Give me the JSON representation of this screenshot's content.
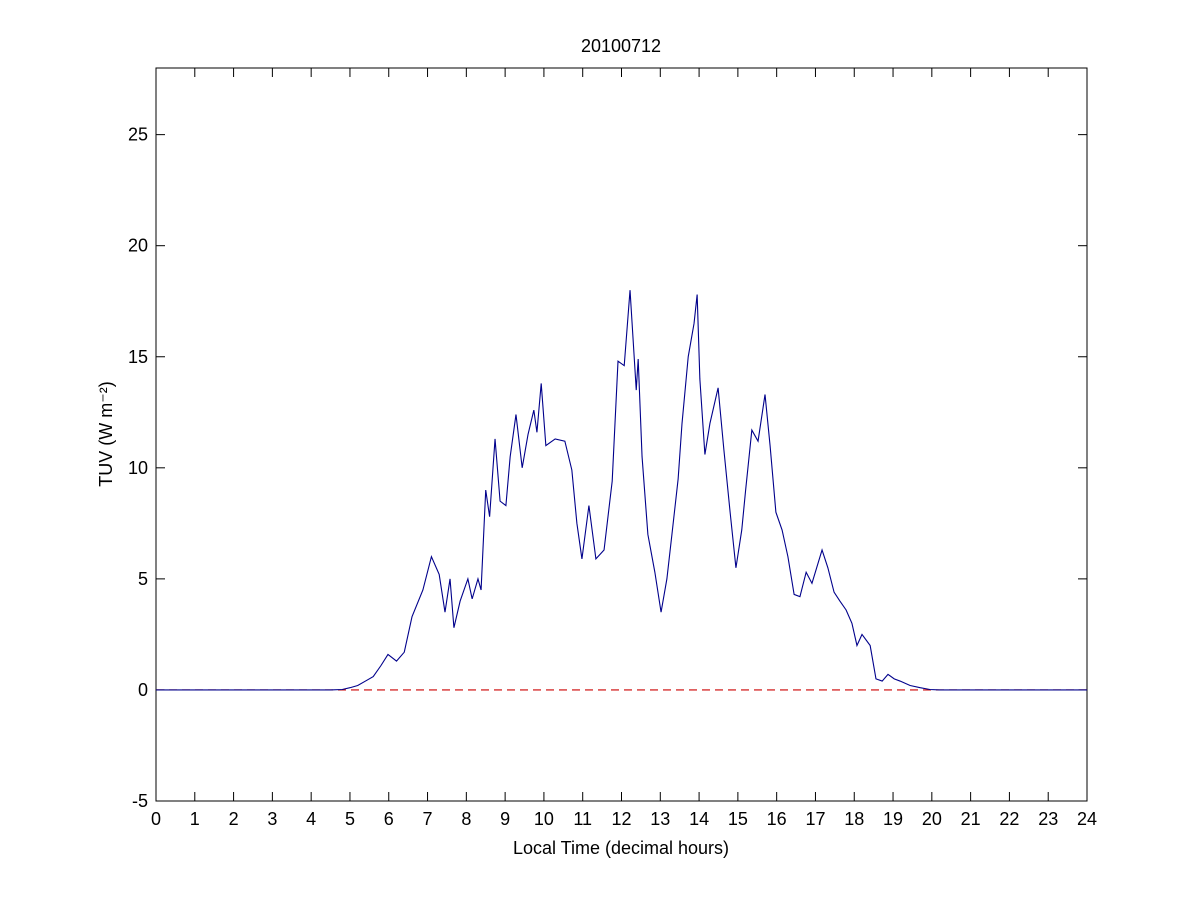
{
  "chart_data": {
    "type": "line",
    "title": "20100712",
    "xlabel": "Local Time (decimal hours)",
    "ylabel": "TUV (W m⁻²)",
    "x": [
      0,
      4.5,
      4.8,
      5.0,
      5.2,
      5.4,
      5.6,
      5.8,
      5.98,
      6.2,
      6.4,
      6.6,
      6.88,
      7.1,
      7.3,
      7.45,
      7.58,
      7.68,
      7.84,
      8.04,
      8.15,
      8.3,
      8.38,
      8.5,
      8.6,
      8.74,
      8.87,
      9.02,
      9.13,
      9.28,
      9.44,
      9.59,
      9.74,
      9.82,
      9.93,
      10.05,
      10.29,
      10.54,
      10.72,
      10.85,
      10.98,
      11.16,
      11.34,
      11.55,
      11.76,
      11.91,
      12.07,
      12.22,
      12.38,
      12.43,
      12.53,
      12.68,
      12.86,
      13.02,
      13.17,
      13.3,
      13.46,
      13.56,
      13.72,
      13.87,
      13.95,
      14.02,
      14.15,
      14.28,
      14.49,
      14.64,
      14.8,
      14.95,
      15.1,
      15.2,
      15.36,
      15.52,
      15.7,
      15.83,
      15.98,
      16.14,
      16.29,
      16.45,
      16.6,
      16.76,
      16.91,
      17.17,
      17.32,
      17.48,
      17.63,
      17.79,
      17.94,
      18.07,
      18.2,
      18.41,
      18.56,
      18.72,
      18.87,
      19.03,
      19.18,
      19.44,
      19.7,
      19.95,
      20.2,
      24
    ],
    "values": [
      0,
      0,
      0.02,
      0.1,
      0.2,
      0.4,
      0.6,
      1.1,
      1.6,
      1.3,
      1.7,
      3.3,
      4.5,
      6.0,
      5.2,
      3.5,
      5.0,
      2.8,
      4.0,
      5.0,
      4.1,
      5.0,
      4.5,
      9.0,
      7.8,
      11.3,
      8.5,
      8.3,
      10.5,
      12.4,
      10.0,
      11.5,
      12.6,
      11.6,
      13.8,
      11.0,
      11.3,
      11.2,
      9.9,
      7.5,
      5.9,
      8.3,
      5.9,
      6.3,
      9.4,
      14.8,
      14.6,
      18.0,
      13.5,
      14.9,
      10.5,
      7.0,
      5.3,
      3.5,
      5.0,
      7.0,
      9.5,
      12.0,
      15.0,
      16.5,
      17.8,
      14.0,
      10.6,
      12.0,
      13.6,
      10.8,
      8.0,
      5.5,
      7.2,
      9.0,
      11.7,
      11.2,
      13.3,
      11.0,
      8.0,
      7.2,
      6.0,
      4.3,
      4.2,
      5.3,
      4.8,
      6.3,
      5.5,
      4.4,
      4.0,
      3.6,
      3.0,
      2.0,
      2.5,
      2.0,
      0.5,
      0.4,
      0.7,
      0.5,
      0.4,
      0.2,
      0.1,
      0.02,
      0,
      0
    ],
    "color": "#00008b",
    "reference_line": {
      "y": 0,
      "color": "#cc0000",
      "dashed": true
    },
    "xlim": [
      0,
      24
    ],
    "xticks": [
      0,
      1,
      2,
      3,
      4,
      5,
      6,
      7,
      8,
      9,
      10,
      11,
      12,
      13,
      14,
      15,
      16,
      17,
      18,
      19,
      20,
      21,
      22,
      23,
      24
    ],
    "ylim": [
      -5,
      28
    ],
    "yticks": [
      -5,
      0,
      5,
      10,
      15,
      20,
      25
    ]
  }
}
